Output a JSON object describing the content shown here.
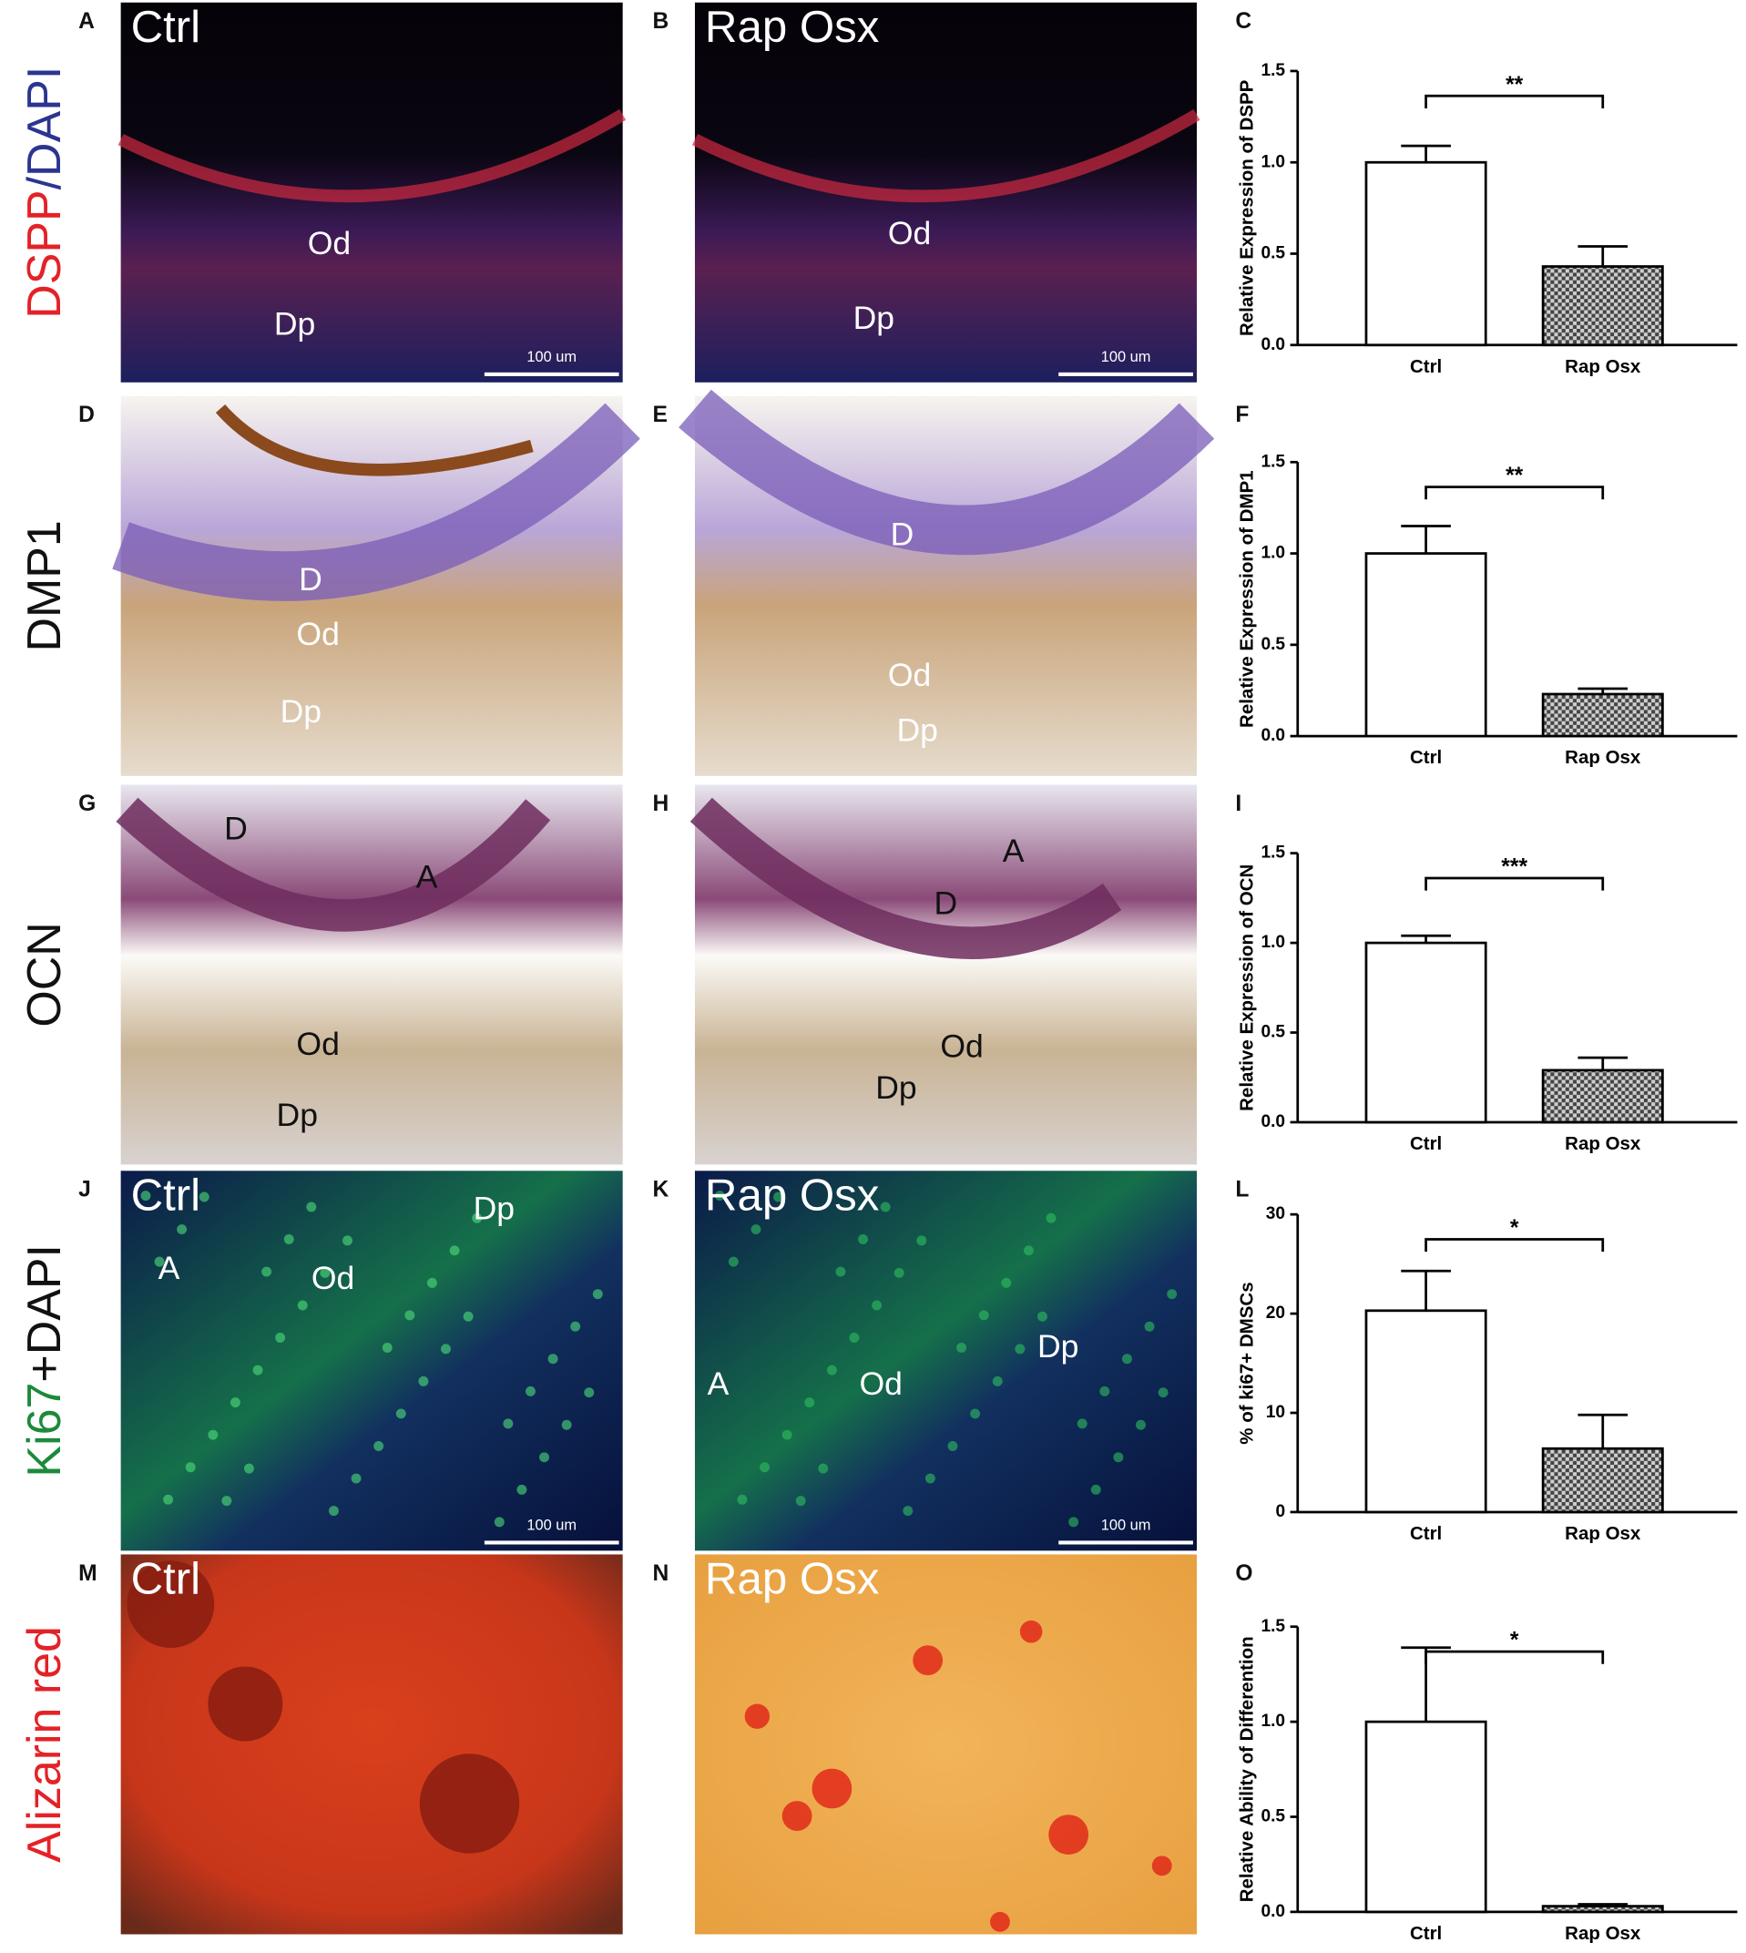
{
  "figure": {
    "rows": [
      {
        "label": [
          {
            "text": "DSPP",
            "color": "#e32228"
          },
          {
            "text": "/DAPI",
            "color": "#2b3591"
          }
        ],
        "panels": [
          {
            "letter": "A",
            "title": "Ctrl",
            "notes": [
              "Od",
              "Dp"
            ],
            "scale_bar": "100 um"
          },
          {
            "letter": "B",
            "title": "Rap Osx",
            "notes": [
              "Od",
              "Dp"
            ],
            "scale_bar": "100 um"
          }
        ],
        "chart_letter": "C"
      },
      {
        "label": [
          {
            "text": "DMP1",
            "color": "#111111"
          }
        ],
        "panels": [
          {
            "letter": "D",
            "notes": [
              "D",
              "Od",
              "Dp"
            ]
          },
          {
            "letter": "E",
            "notes": [
              "D",
              "Od",
              "Dp"
            ]
          }
        ],
        "chart_letter": "F"
      },
      {
        "label": [
          {
            "text": "OCN",
            "color": "#111111"
          }
        ],
        "panels": [
          {
            "letter": "G",
            "notes": [
              "D",
              "A",
              "Od",
              "Dp"
            ]
          },
          {
            "letter": "H",
            "notes": [
              "A",
              "D",
              "Od",
              "Dp"
            ]
          }
        ],
        "chart_letter": "I"
      },
      {
        "label": [
          {
            "text": "Ki67",
            "color": "#1b8a3a"
          },
          {
            "text": "+DAPI",
            "color": "#111111"
          }
        ],
        "panels": [
          {
            "letter": "J",
            "title": "Ctrl",
            "notes": [
              "Dp",
              "A",
              "Od"
            ],
            "scale_bar": "100 um"
          },
          {
            "letter": "K",
            "title": "Rap Osx",
            "notes": [
              "A",
              "Od",
              "Dp"
            ],
            "scale_bar": "100 um"
          }
        ],
        "chart_letter": "L"
      },
      {
        "label": [
          {
            "text": "Alizarin red",
            "color": "#e32228"
          }
        ],
        "panels": [
          {
            "letter": "M",
            "title": "Ctrl",
            "notes": []
          },
          {
            "letter": "N",
            "title": "Rap Osx",
            "notes": []
          }
        ],
        "chart_letter": "O"
      }
    ]
  },
  "chart_data": [
    {
      "type": "bar",
      "ylabel": "Relative Expression  of DSPP",
      "categories": [
        "Ctrl",
        "Rap Osx"
      ],
      "values": [
        1.0,
        0.43
      ],
      "errors": [
        0.09,
        0.11
      ],
      "colors": [
        "#ffffff",
        "#444444"
      ],
      "checker": [
        false,
        true
      ],
      "ylim": [
        0,
        1.5
      ],
      "yticks": [
        {
          "value": 0,
          "label": "0.0"
        },
        0.5,
        {
          "value": 1,
          "label": "1.0"
        },
        1.5
      ],
      "significance": "**"
    },
    {
      "type": "bar",
      "ylabel": "Relative Expression  of DMP1",
      "categories": [
        "Ctrl",
        "Rap Osx"
      ],
      "values": [
        1.0,
        0.23
      ],
      "errors": [
        0.15,
        0.03
      ],
      "colors": [
        "#ffffff",
        "#444444"
      ],
      "checker": [
        false,
        true
      ],
      "ylim": [
        0,
        1.5
      ],
      "yticks": [
        {
          "value": 0,
          "label": "0.0"
        },
        0.5,
        {
          "value": 1,
          "label": "1.0"
        },
        1.5
      ],
      "significance": "**"
    },
    {
      "type": "bar",
      "ylabel": "Relative Expression  of OCN",
      "categories": [
        "Ctrl",
        "Rap Osx"
      ],
      "values": [
        1.0,
        0.29
      ],
      "errors": [
        0.04,
        0.07
      ],
      "colors": [
        "#ffffff",
        "#444444"
      ],
      "checker": [
        false,
        true
      ],
      "ylim": [
        0,
        1.5
      ],
      "yticks": [
        {
          "value": 0,
          "label": "0.0"
        },
        0.5,
        {
          "value": 1,
          "label": "1.0"
        },
        1.5
      ],
      "significance": "***"
    },
    {
      "type": "bar",
      "ylabel": "% of ki67+ DMSCs",
      "categories": [
        "Ctrl",
        "Rap Osx"
      ],
      "values": [
        20.3,
        6.4
      ],
      "errors": [
        4.0,
        3.4
      ],
      "colors": [
        "#ffffff",
        "#444444"
      ],
      "checker": [
        false,
        true
      ],
      "ylim": [
        0,
        30
      ],
      "yticks": [
        0,
        10,
        20,
        30
      ],
      "significance": "*"
    },
    {
      "type": "bar",
      "ylabel": "Relative Ability of Differention",
      "categories": [
        "Ctrl",
        "Rap Osx"
      ],
      "values": [
        1.0,
        0.03
      ],
      "errors": [
        0.39,
        0.01
      ],
      "colors": [
        "#ffffff",
        "#444444"
      ],
      "checker": [
        false,
        true
      ],
      "ylim": [
        0,
        1.5
      ],
      "yticks": [
        {
          "value": 0,
          "label": "0.0"
        },
        0.5,
        {
          "value": 1,
          "label": "1.0"
        },
        1.5
      ],
      "significance": "*"
    }
  ]
}
